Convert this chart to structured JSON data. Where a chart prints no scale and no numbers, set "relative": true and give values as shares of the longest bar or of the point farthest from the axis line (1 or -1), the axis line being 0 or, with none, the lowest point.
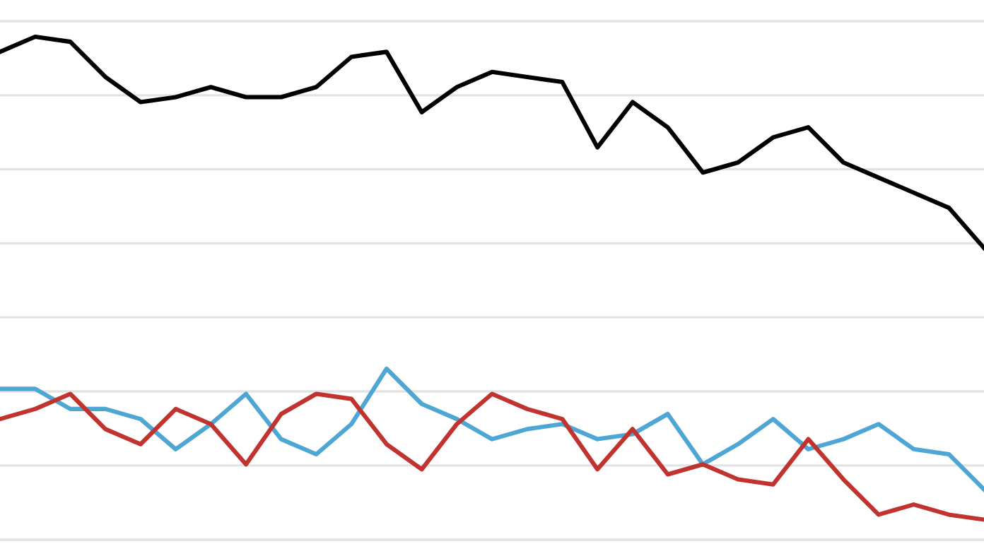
{
  "chart_data": {
    "type": "line",
    "relative": true,
    "grid": "y",
    "marker": "none",
    "line_style": "solid",
    "categories": [
      null,
      null,
      null,
      null,
      null,
      null,
      null,
      null,
      null,
      null,
      null,
      null,
      null,
      null,
      null,
      null,
      null,
      null,
      null,
      null,
      null,
      null,
      null,
      null,
      null,
      null,
      null,
      null,
      null
    ],
    "series": [
      {
        "color": "#000000",
        "values": [
          0.97,
          1,
          0.99,
          0.92,
          0.87,
          0.88,
          0.9,
          0.88,
          0.88,
          0.9,
          0.96,
          0.97,
          0.85,
          0.9,
          0.93,
          0.92,
          0.91,
          0.78,
          0.87,
          0.82,
          0.73,
          0.75,
          0.8,
          0.82,
          0.75,
          0.72,
          0.69,
          0.66,
          0.58
        ]
      },
      {
        "color": "#4ea6d4",
        "values": [
          0.3,
          0.3,
          0.26,
          0.26,
          0.24,
          0.18,
          0.23,
          0.29,
          0.2,
          0.17,
          0.23,
          0.34,
          0.27,
          0.24,
          0.2,
          0.22,
          0.23,
          0.2,
          0.21,
          0.25,
          0.15,
          0.19,
          0.24,
          0.18,
          0.2,
          0.23,
          0.18,
          0.17,
          0.1
        ]
      },
      {
        "color": "#c0332f",
        "values": [
          0.24,
          0.26,
          0.29,
          0.22,
          0.19,
          0.26,
          0.23,
          0.15,
          0.25,
          0.29,
          0.28,
          0.19,
          0.14,
          0.23,
          0.29,
          0.26,
          0.24,
          0.14,
          0.22,
          0.13,
          0.15,
          0.12,
          0.11,
          0.2,
          0.12,
          0.05,
          0.07,
          0.05,
          0.04
        ]
      }
    ]
  }
}
